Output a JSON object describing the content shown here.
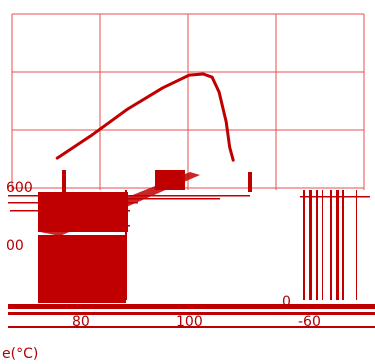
{
  "colors": {
    "accent": "#c00000",
    "grid": "#e55050",
    "background": "#ffffff"
  },
  "chart_data": {
    "type": "line",
    "title": "",
    "xlabel": "e(°C)",
    "ylabel": "",
    "grid": true,
    "x_tick_labels": [
      "80",
      "100",
      "-60"
    ],
    "y_tick_labels": [
      "600",
      "00",
      "0"
    ],
    "series": [
      {
        "x": [
          20,
          40,
          60,
          80,
          95,
          103,
          108,
          112,
          116,
          118,
          120
        ],
        "y": [
          650,
          760,
          880,
          980,
          1040,
          1045,
          1030,
          960,
          820,
          700,
          640
        ]
      }
    ]
  }
}
